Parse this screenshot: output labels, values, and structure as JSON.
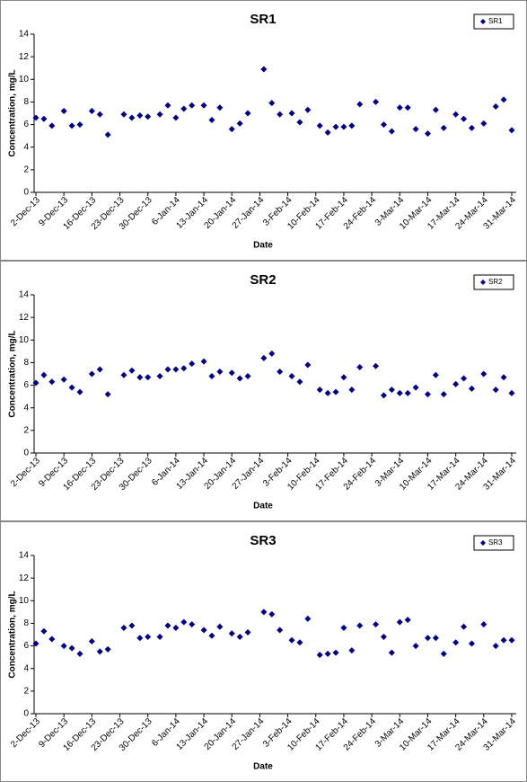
{
  "chart_data": [
    {
      "type": "scatter",
      "title": "SR1",
      "x_label": "Date",
      "y_label": "Concentration, mg/L",
      "legend": "upper right",
      "x": [
        "2013-12-02",
        "2013-12-04",
        "2013-12-06",
        "2013-12-09",
        "2013-12-11",
        "2013-12-13",
        "2013-12-16",
        "2013-12-18",
        "2013-12-20",
        "2013-12-24",
        "2013-12-26",
        "2013-12-28",
        "2013-12-30",
        "2014-01-02",
        "2014-01-04",
        "2014-01-06",
        "2014-01-08",
        "2014-01-10",
        "2014-01-13",
        "2014-01-15",
        "2014-01-17",
        "2014-01-20",
        "2014-01-22",
        "2014-01-24",
        "2014-01-28",
        "2014-01-30",
        "2014-02-01",
        "2014-02-04",
        "2014-02-06",
        "2014-02-08",
        "2014-02-11",
        "2014-02-13",
        "2014-02-15",
        "2014-02-17",
        "2014-02-19",
        "2014-02-21",
        "2014-02-25",
        "2014-02-27",
        "2014-03-01",
        "2014-03-03",
        "2014-03-05",
        "2014-03-07",
        "2014-03-10",
        "2014-03-12",
        "2014-03-14",
        "2014-03-17",
        "2014-03-19",
        "2014-03-21",
        "2014-03-24",
        "2014-03-27",
        "2014-03-29",
        "2014-03-31"
      ],
      "series": [
        {
          "name": "SR1",
          "color": "#000080",
          "values": [
            6.6,
            6.5,
            5.9,
            7.2,
            5.9,
            6.0,
            7.2,
            6.9,
            5.1,
            6.9,
            6.6,
            6.8,
            6.7,
            6.9,
            7.7,
            6.6,
            7.4,
            7.7,
            7.7,
            6.4,
            7.5,
            5.6,
            6.1,
            7.0,
            10.9,
            7.9,
            6.9,
            7.0,
            6.2,
            7.3,
            5.9,
            5.3,
            5.8,
            5.8,
            5.9,
            7.8,
            8.0,
            6.0,
            5.4,
            7.5,
            7.5,
            5.6,
            5.2,
            7.3,
            5.7,
            6.9,
            6.5,
            5.7,
            6.1,
            7.6,
            8.2,
            5.5
          ]
        }
      ],
      "xlim": [
        "2013-12-02",
        "2014-03-31"
      ],
      "ylim": [
        0,
        14
      ],
      "yticks": [
        0,
        2,
        4,
        6,
        8,
        10,
        12,
        14
      ],
      "xticks": [
        {
          "value": "2013-12-02",
          "label": "2-Dec-13"
        },
        {
          "value": "2013-12-09",
          "label": "9-Dec-13"
        },
        {
          "value": "2013-12-16",
          "label": "16-Dec-13"
        },
        {
          "value": "2013-12-23",
          "label": "23-Dec-13"
        },
        {
          "value": "2013-12-30",
          "label": "30-Dec-13"
        },
        {
          "value": "2014-01-06",
          "label": "6-Jan-14"
        },
        {
          "value": "2014-01-13",
          "label": "13-Jan-14"
        },
        {
          "value": "2014-01-20",
          "label": "20-Jan-14"
        },
        {
          "value": "2014-01-27",
          "label": "27-Jan-14"
        },
        {
          "value": "2014-02-03",
          "label": "3-Feb-14"
        },
        {
          "value": "2014-02-10",
          "label": "10-Feb-14"
        },
        {
          "value": "2014-02-17",
          "label": "17-Feb-14"
        },
        {
          "value": "2014-02-24",
          "label": "24-Feb-14"
        },
        {
          "value": "2014-03-03",
          "label": "3-Mar-14"
        },
        {
          "value": "2014-03-10",
          "label": "10-Mar-14"
        },
        {
          "value": "2014-03-17",
          "label": "17-Mar-14"
        },
        {
          "value": "2014-03-24",
          "label": "24-Mar-14"
        },
        {
          "value": "2014-03-31",
          "label": "31-Mar-14"
        }
      ]
    },
    {
      "type": "scatter",
      "title": "SR2",
      "x_label": "Date",
      "y_label": "Concentration, mg/L",
      "legend": "upper right",
      "x": [
        "2013-12-02",
        "2013-12-04",
        "2013-12-06",
        "2013-12-09",
        "2013-12-11",
        "2013-12-13",
        "2013-12-16",
        "2013-12-18",
        "2013-12-20",
        "2013-12-24",
        "2013-12-26",
        "2013-12-28",
        "2013-12-30",
        "2014-01-02",
        "2014-01-04",
        "2014-01-06",
        "2014-01-08",
        "2014-01-10",
        "2014-01-13",
        "2014-01-15",
        "2014-01-17",
        "2014-01-20",
        "2014-01-22",
        "2014-01-24",
        "2014-01-28",
        "2014-01-30",
        "2014-02-01",
        "2014-02-04",
        "2014-02-06",
        "2014-02-08",
        "2014-02-11",
        "2014-02-13",
        "2014-02-15",
        "2014-02-17",
        "2014-02-19",
        "2014-02-21",
        "2014-02-25",
        "2014-02-27",
        "2014-03-01",
        "2014-03-03",
        "2014-03-05",
        "2014-03-07",
        "2014-03-10",
        "2014-03-12",
        "2014-03-14",
        "2014-03-17",
        "2014-03-19",
        "2014-03-21",
        "2014-03-24",
        "2014-03-27",
        "2014-03-29",
        "2014-03-31"
      ],
      "series": [
        {
          "name": "SR2",
          "color": "#000080",
          "values": [
            6.2,
            6.9,
            6.3,
            6.5,
            5.8,
            5.4,
            7.0,
            7.4,
            5.2,
            6.9,
            7.3,
            6.7,
            6.7,
            6.8,
            7.4,
            7.4,
            7.5,
            7.9,
            8.1,
            6.8,
            7.2,
            7.1,
            6.6,
            6.8,
            8.4,
            8.8,
            7.2,
            6.8,
            6.3,
            7.8,
            5.6,
            5.3,
            5.4,
            6.7,
            5.6,
            7.6,
            7.7,
            5.1,
            5.6,
            5.3,
            5.3,
            5.8,
            5.2,
            6.9,
            5.2,
            6.1,
            6.6,
            5.7,
            7.0,
            5.6,
            6.7,
            5.3
          ]
        }
      ],
      "xlim": [
        "2013-12-02",
        "2014-03-31"
      ],
      "ylim": [
        0,
        14
      ],
      "yticks": [
        0,
        2,
        4,
        6,
        8,
        10,
        12,
        14
      ],
      "xticks": [
        {
          "value": "2013-12-02",
          "label": "2-Dec-13"
        },
        {
          "value": "2013-12-09",
          "label": "9-Dec-13"
        },
        {
          "value": "2013-12-16",
          "label": "16-Dec-13"
        },
        {
          "value": "2013-12-23",
          "label": "23-Dec-13"
        },
        {
          "value": "2013-12-30",
          "label": "30-Dec-13"
        },
        {
          "value": "2014-01-06",
          "label": "6-Jan-14"
        },
        {
          "value": "2014-01-13",
          "label": "13-Jan-14"
        },
        {
          "value": "2014-01-20",
          "label": "20-Jan-14"
        },
        {
          "value": "2014-01-27",
          "label": "27-Jan-14"
        },
        {
          "value": "2014-02-03",
          "label": "3-Feb-14"
        },
        {
          "value": "2014-02-10",
          "label": "10-Feb-14"
        },
        {
          "value": "2014-02-17",
          "label": "17-Feb-14"
        },
        {
          "value": "2014-02-24",
          "label": "24-Feb-14"
        },
        {
          "value": "2014-03-03",
          "label": "3-Mar-14"
        },
        {
          "value": "2014-03-10",
          "label": "10-Mar-14"
        },
        {
          "value": "2014-03-17",
          "label": "17-Mar-14"
        },
        {
          "value": "2014-03-24",
          "label": "24-Mar-14"
        },
        {
          "value": "2014-03-31",
          "label": "31-Mar-14"
        }
      ]
    },
    {
      "type": "scatter",
      "title": "SR3",
      "x_label": "Date",
      "y_label": "Concentration, mg/L",
      "legend": "upper right",
      "x": [
        "2013-12-02",
        "2013-12-04",
        "2013-12-06",
        "2013-12-09",
        "2013-12-11",
        "2013-12-13",
        "2013-12-16",
        "2013-12-18",
        "2013-12-20",
        "2013-12-24",
        "2013-12-26",
        "2013-12-28",
        "2013-12-30",
        "2014-01-02",
        "2014-01-04",
        "2014-01-06",
        "2014-01-08",
        "2014-01-10",
        "2014-01-13",
        "2014-01-15",
        "2014-01-17",
        "2014-01-20",
        "2014-01-22",
        "2014-01-24",
        "2014-01-28",
        "2014-01-30",
        "2014-02-01",
        "2014-02-04",
        "2014-02-06",
        "2014-02-08",
        "2014-02-11",
        "2014-02-13",
        "2014-02-15",
        "2014-02-17",
        "2014-02-19",
        "2014-02-21",
        "2014-02-25",
        "2014-02-27",
        "2014-03-01",
        "2014-03-03",
        "2014-03-05",
        "2014-03-07",
        "2014-03-10",
        "2014-03-12",
        "2014-03-14",
        "2014-03-17",
        "2014-03-19",
        "2014-03-21",
        "2014-03-24",
        "2014-03-27",
        "2014-03-29",
        "2014-03-31"
      ],
      "series": [
        {
          "name": "SR3",
          "color": "#000080",
          "values": [
            6.2,
            7.3,
            6.6,
            6.0,
            5.8,
            5.3,
            6.4,
            5.5,
            5.7,
            7.6,
            7.8,
            6.7,
            6.8,
            6.8,
            7.8,
            7.6,
            8.1,
            7.9,
            7.4,
            6.9,
            7.7,
            7.1,
            6.8,
            7.2,
            9.0,
            8.8,
            7.4,
            6.5,
            6.3,
            8.4,
            5.2,
            5.3,
            5.4,
            7.6,
            5.6,
            7.8,
            7.9,
            6.8,
            5.4,
            8.1,
            8.3,
            6.0,
            6.7,
            6.7,
            5.3,
            6.3,
            7.7,
            6.2,
            7.9,
            6.0,
            6.5,
            6.5
          ]
        }
      ],
      "xlim": [
        "2013-12-02",
        "2014-03-31"
      ],
      "ylim": [
        0,
        14
      ],
      "yticks": [
        0,
        2,
        4,
        6,
        8,
        10,
        12,
        14
      ],
      "xticks": [
        {
          "value": "2013-12-02",
          "label": "2-Dec-13"
        },
        {
          "value": "2013-12-09",
          "label": "9-Dec-13"
        },
        {
          "value": "2013-12-16",
          "label": "16-Dec-13"
        },
        {
          "value": "2013-12-23",
          "label": "23-Dec-13"
        },
        {
          "value": "2013-12-30",
          "label": "30-Dec-13"
        },
        {
          "value": "2014-01-06",
          "label": "6-Jan-14"
        },
        {
          "value": "2014-01-13",
          "label": "13-Jan-14"
        },
        {
          "value": "2014-01-20",
          "label": "20-Jan-14"
        },
        {
          "value": "2014-01-27",
          "label": "27-Jan-14"
        },
        {
          "value": "2014-02-03",
          "label": "3-Feb-14"
        },
        {
          "value": "2014-02-10",
          "label": "10-Feb-14"
        },
        {
          "value": "2014-02-17",
          "label": "17-Feb-14"
        },
        {
          "value": "2014-02-24",
          "label": "24-Feb-14"
        },
        {
          "value": "2014-03-03",
          "label": "3-Mar-14"
        },
        {
          "value": "2014-03-10",
          "label": "10-Mar-14"
        },
        {
          "value": "2014-03-17",
          "label": "17-Mar-14"
        },
        {
          "value": "2014-03-24",
          "label": "24-Mar-14"
        },
        {
          "value": "2014-03-31",
          "label": "31-Mar-14"
        }
      ]
    }
  ]
}
